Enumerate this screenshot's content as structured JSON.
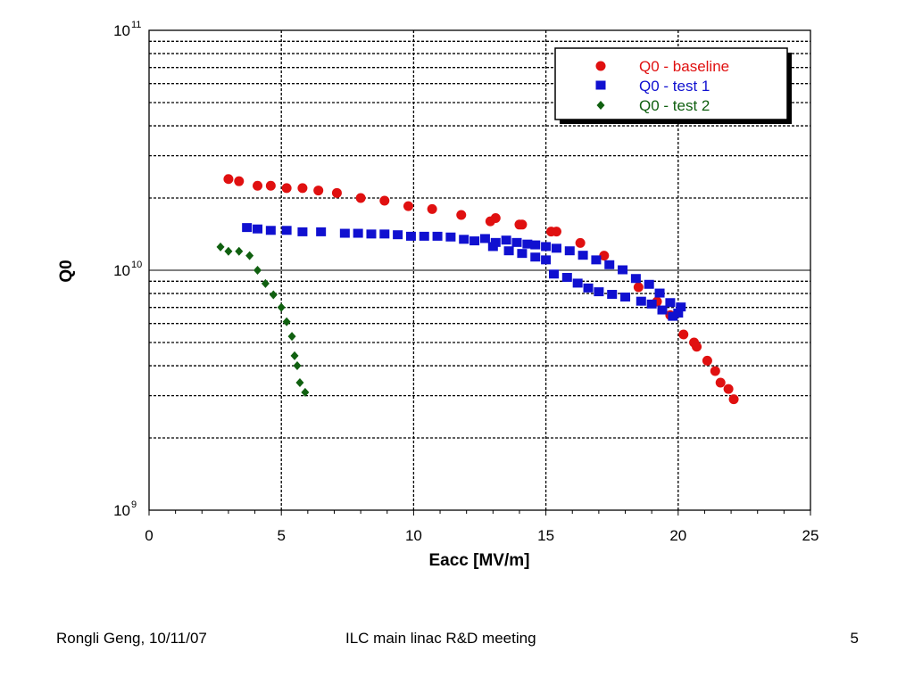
{
  "footer": {
    "author_date": "Rongli Geng, 10/11/07",
    "meeting": "ILC main linac R&D meeting",
    "page": "5"
  },
  "chart_data": {
    "type": "scatter",
    "title": "",
    "xlabel": "Eacc [MV/m]",
    "ylabel": "Q0",
    "xlim": [
      0,
      25
    ],
    "ylim": [
      1000000000.0,
      100000000000.0
    ],
    "yscale": "log",
    "x_ticks": [
      "0",
      "5",
      "10",
      "15",
      "20",
      "25"
    ],
    "y_ticks": [
      {
        "base": "10",
        "exp": "9"
      },
      {
        "base": "10",
        "exp": "10"
      },
      {
        "base": "10",
        "exp": "11"
      }
    ],
    "grid": true,
    "legend_position": "top-right",
    "series": [
      {
        "name": "Q0 - baseline",
        "marker": "circle",
        "color": "#e01010",
        "x": [
          3.0,
          3.4,
          4.1,
          4.6,
          5.2,
          5.8,
          6.4,
          7.1,
          8.0,
          8.9,
          9.8,
          10.7,
          11.8,
          12.9,
          13.1,
          14.0,
          14.1,
          15.2,
          15.4,
          16.3,
          17.2,
          18.5,
          19.2,
          19.7,
          20.2,
          20.6,
          20.7,
          21.1,
          21.4,
          21.6,
          21.9,
          22.1
        ],
        "y": [
          24000000000.0,
          23500000000.0,
          22500000000.0,
          22500000000.0,
          22000000000.0,
          22000000000.0,
          21500000000.0,
          21000000000.0,
          20000000000.0,
          19500000000.0,
          18500000000.0,
          18000000000.0,
          17000000000.0,
          16000000000.0,
          16500000000.0,
          15500000000.0,
          15500000000.0,
          14500000000.0,
          14500000000.0,
          13000000000.0,
          11500000000.0,
          8500000000.0,
          7400000000.0,
          6500000000.0,
          5400000000.0,
          5000000000.0,
          4800000000.0,
          4200000000.0,
          3800000000.0,
          3400000000.0,
          3200000000.0,
          2900000000.0
        ]
      },
      {
        "name": "Q0 - test 1",
        "marker": "square",
        "color": "#1010d0",
        "x": [
          3.7,
          4.1,
          4.6,
          5.2,
          5.8,
          6.5,
          7.4,
          7.9,
          8.4,
          8.9,
          9.4,
          9.9,
          10.4,
          10.9,
          11.4,
          11.9,
          12.3,
          12.7,
          13.1,
          13.5,
          13.9,
          14.3,
          14.6,
          15.0,
          15.4,
          15.9,
          16.4,
          16.9,
          17.4,
          17.9,
          18.4,
          18.9,
          19.3,
          19.7,
          20.1,
          13.0,
          13.6,
          14.1,
          14.6,
          15.0,
          15.3,
          15.8,
          16.2,
          16.6,
          17.0,
          17.5,
          18.0,
          18.6,
          19.0,
          19.4,
          19.8,
          20.0
        ],
        "y": [
          15000000000.0,
          14800000000.0,
          14600000000.0,
          14600000000.0,
          14400000000.0,
          14400000000.0,
          14200000000.0,
          14200000000.0,
          14100000000.0,
          14100000000.0,
          14000000000.0,
          13800000000.0,
          13800000000.0,
          13800000000.0,
          13700000000.0,
          13400000000.0,
          13200000000.0,
          13500000000.0,
          13000000000.0,
          13300000000.0,
          13000000000.0,
          12800000000.0,
          12700000000.0,
          12500000000.0,
          12300000000.0,
          12000000000.0,
          11500000000.0,
          11000000000.0,
          10500000000.0,
          10000000000.0,
          9200000000.0,
          8700000000.0,
          8000000000.0,
          7300000000.0,
          7000000000.0,
          12500000000.0,
          12000000000.0,
          11700000000.0,
          11300000000.0,
          11000000000.0,
          9600000000.0,
          9300000000.0,
          8800000000.0,
          8400000000.0,
          8100000000.0,
          7900000000.0,
          7700000000.0,
          7400000000.0,
          7200000000.0,
          6800000000.0,
          6400000000.0,
          6600000000.0
        ]
      },
      {
        "name": "Q0 - test 2",
        "marker": "diamond",
        "color": "#106010",
        "x": [
          2.7,
          3.0,
          3.4,
          3.8,
          4.1,
          4.4,
          4.7,
          5.0,
          5.2,
          5.4,
          5.5,
          5.6,
          5.7,
          5.9
        ],
        "y": [
          12500000000.0,
          12000000000.0,
          12000000000.0,
          11500000000.0,
          10000000000.0,
          8800000000.0,
          7900000000.0,
          7000000000.0,
          6100000000.0,
          5300000000.0,
          4400000000.0,
          4000000000.0,
          3400000000.0,
          3100000000.0
        ]
      }
    ]
  }
}
